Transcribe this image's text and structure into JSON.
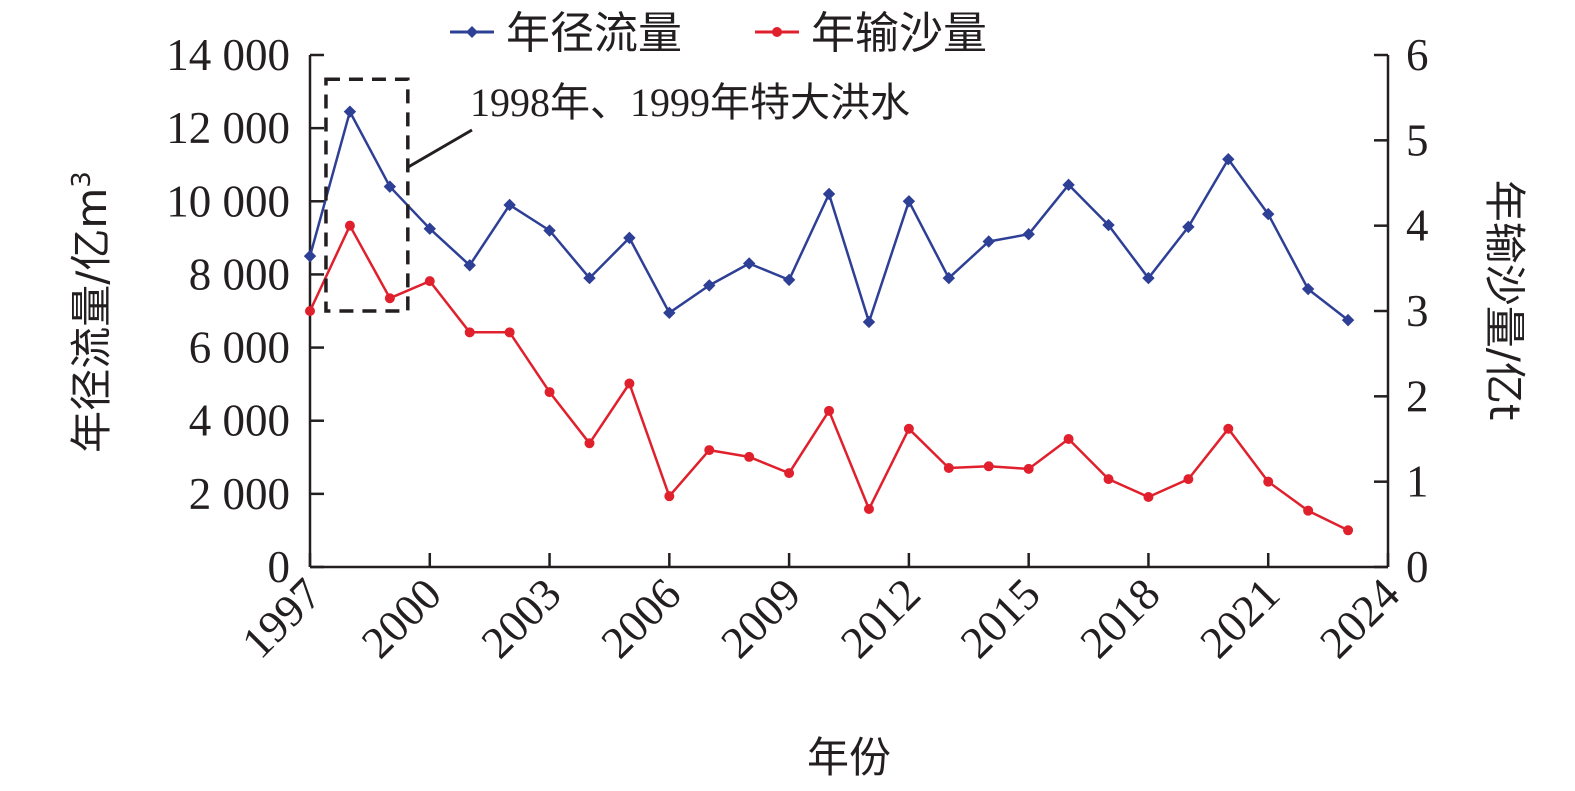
{
  "chart_data": {
    "type": "line",
    "x": [
      1997,
      1998,
      1999,
      2000,
      2001,
      2002,
      2003,
      2004,
      2005,
      2006,
      2007,
      2008,
      2009,
      2010,
      2011,
      2012,
      2013,
      2014,
      2015,
      2016,
      2017,
      2018,
      2019,
      2020,
      2021,
      2022,
      2023
    ],
    "series": [
      {
        "name": "年径流量",
        "axis": "left",
        "color": "#2e3f96",
        "marker": "diamond",
        "values": [
          8500,
          12450,
          10400,
          9250,
          8250,
          9900,
          9200,
          7900,
          9000,
          6950,
          7700,
          8300,
          7850,
          10200,
          6700,
          10000,
          7900,
          8900,
          9100,
          10450,
          9350,
          7900,
          9300,
          11150,
          9650,
          7600,
          6750
        ]
      },
      {
        "name": "年输沙量",
        "axis": "right",
        "color": "#e0202c",
        "marker": "circle",
        "values": [
          3.0,
          4.0,
          3.15,
          3.35,
          2.75,
          2.75,
          2.05,
          1.45,
          2.15,
          0.83,
          1.37,
          1.29,
          1.1,
          1.83,
          0.68,
          1.62,
          1.16,
          1.18,
          1.15,
          1.5,
          1.03,
          0.82,
          1.03,
          1.62,
          1.0,
          0.66,
          0.43
        ]
      }
    ],
    "x_ticks": [
      "1997",
      "2000",
      "2003",
      "2006",
      "2009",
      "2012",
      "2015",
      "2018",
      "2021",
      "2024"
    ],
    "xlim": [
      1997,
      2024
    ],
    "xlabel": "年份",
    "ylabel_left": "年径流量/亿m",
    "ylabel_left_sup": "3",
    "ylim_left": [
      0,
      14000
    ],
    "y_ticks_left": [
      "0",
      "2 000",
      "4 000",
      "6 000",
      "8 000",
      "10 000",
      "12 000",
      "14 000"
    ],
    "ylabel_right": "年输沙量/亿t",
    "ylim_right": [
      0,
      6
    ],
    "y_ticks_right": [
      "0",
      "1",
      "2",
      "3",
      "4",
      "5",
      "6"
    ],
    "legend_position": "top-center",
    "grid": false,
    "annotation": {
      "text": "1998年、1999年特大洪水",
      "box_x_range": [
        1997.5,
        1999.5
      ],
      "box_y_range_left": [
        7000,
        13200
      ]
    }
  }
}
